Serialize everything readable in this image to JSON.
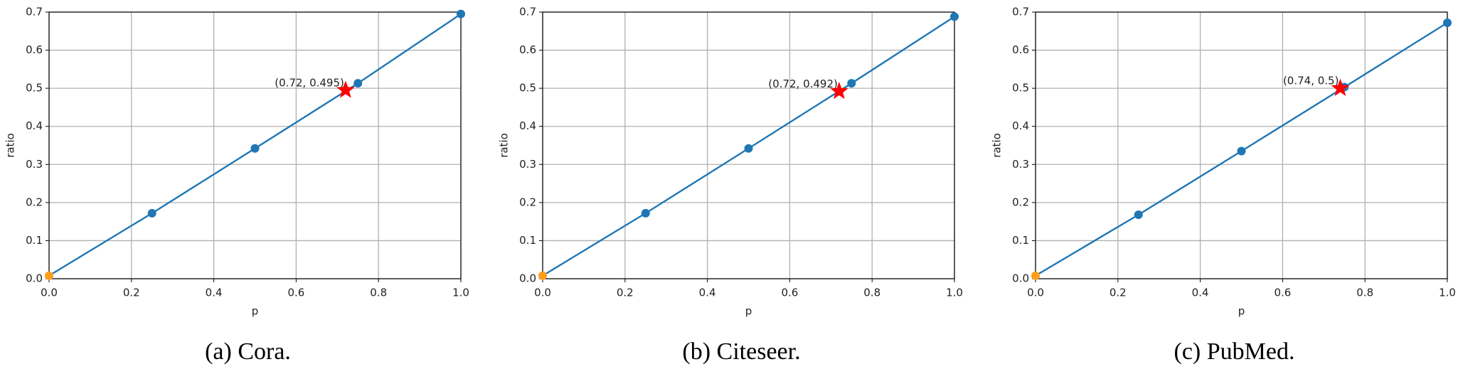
{
  "chart_data": [
    {
      "type": "line",
      "caption": "(a) Cora.",
      "xlabel": "p",
      "ylabel": "ratio",
      "x": [
        0,
        0.25,
        0.5,
        0.75,
        1
      ],
      "grid": true,
      "series": [
        {
          "color": "#1f77b4",
          "values": [
            0.008,
            0.172,
            0.342,
            0.513,
            0.695
          ]
        }
      ],
      "marker_colors": [
        "#ff9f1c",
        "#1f77b4",
        "#1f77b4",
        "#1f77b4",
        "#1f77b4"
      ],
      "highlight": {
        "x": 0.72,
        "y": 0.495,
        "label": "(0.72, 0.495)",
        "color": "#ff0000"
      },
      "xlim": [
        0,
        1
      ],
      "ylim": [
        0,
        0.7
      ],
      "xticks": [
        {
          "value": 0,
          "label": "0.0"
        },
        0.2,
        0.4,
        0.6,
        0.8,
        {
          "value": 1,
          "label": "1.0"
        }
      ],
      "yticks": [
        {
          "value": 0,
          "label": "0.0"
        },
        0.1,
        0.2,
        0.3,
        0.4,
        0.5,
        0.6,
        0.7
      ]
    },
    {
      "type": "line",
      "caption": "(b) Citeseer.",
      "xlabel": "p",
      "ylabel": "ratio",
      "x": [
        0,
        0.25,
        0.5,
        0.75,
        1
      ],
      "grid": true,
      "series": [
        {
          "color": "#1f77b4",
          "values": [
            0.008,
            0.172,
            0.342,
            0.513,
            0.688
          ]
        }
      ],
      "marker_colors": [
        "#ff9f1c",
        "#1f77b4",
        "#1f77b4",
        "#1f77b4",
        "#1f77b4"
      ],
      "highlight": {
        "x": 0.72,
        "y": 0.492,
        "label": "(0.72, 0.492)",
        "color": "#ff0000"
      },
      "xlim": [
        0,
        1
      ],
      "ylim": [
        0,
        0.7
      ],
      "xticks": [
        {
          "value": 0,
          "label": "0.0"
        },
        0.2,
        0.4,
        0.6,
        0.8,
        {
          "value": 1,
          "label": "1.0"
        }
      ],
      "yticks": [
        {
          "value": 0,
          "label": "0.0"
        },
        0.1,
        0.2,
        0.3,
        0.4,
        0.5,
        0.6,
        0.7
      ]
    },
    {
      "type": "line",
      "caption": "(c) PubMed.",
      "xlabel": "p",
      "ylabel": "ratio",
      "x": [
        0,
        0.25,
        0.5,
        0.75,
        1
      ],
      "grid": true,
      "series": [
        {
          "color": "#1f77b4",
          "values": [
            0.008,
            0.168,
            0.335,
            0.503,
            0.672
          ]
        }
      ],
      "marker_colors": [
        "#ff9f1c",
        "#1f77b4",
        "#1f77b4",
        "#1f77b4",
        "#1f77b4"
      ],
      "highlight": {
        "x": 0.74,
        "y": 0.5,
        "label": "(0.74, 0.5)",
        "color": "#ff0000"
      },
      "xlim": [
        0,
        1
      ],
      "ylim": [
        0,
        0.7
      ],
      "xticks": [
        {
          "value": 0,
          "label": "0.0"
        },
        0.2,
        0.4,
        0.6,
        0.8,
        {
          "value": 1,
          "label": "1.0"
        }
      ],
      "yticks": [
        {
          "value": 0,
          "label": "0.0"
        },
        0.1,
        0.2,
        0.3,
        0.4,
        0.5,
        0.6,
        0.7
      ]
    }
  ]
}
